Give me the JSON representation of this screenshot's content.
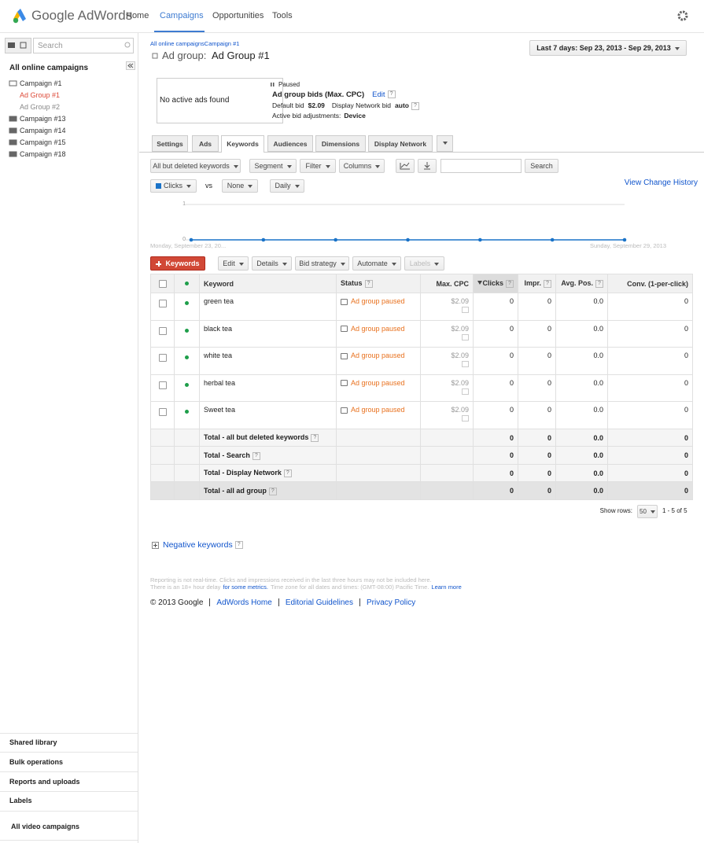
{
  "header": {
    "logo": "Google AdWords",
    "nav": [
      "Home",
      "Campaigns",
      "Opportunities",
      "Tools"
    ]
  },
  "help": "?",
  "sidebar": {
    "search": "Search",
    "title": "All online campaigns",
    "tree": [
      {
        "label": "Campaign #1",
        "children": [
          "Ad Group #1",
          "Ad Group #2"
        ]
      },
      {
        "label": "Campaign #13"
      },
      {
        "label": "Campaign #14"
      },
      {
        "label": "Campaign #15"
      },
      {
        "label": "Campaign #18"
      }
    ],
    "bottom": [
      "Shared library",
      "Bulk operations",
      "Reports and uploads",
      "Labels",
      "All video campaigns"
    ]
  },
  "breadcrumb": [
    "All online campaigns",
    "Campaign #1"
  ],
  "page_title": {
    "prefix": "Ad group:",
    "name": "Ad Group #1"
  },
  "date_range": "Last 7 days: Sep 23, 2013 - Sep 29, 2013",
  "summary": {
    "no_ads": "No active ads found",
    "status": "Paused",
    "bids_label": "Ad group bids (Max. CPC)",
    "edit": "Edit",
    "default_bid_label": "Default bid",
    "default_bid": "$2.09",
    "display_bid_label": "Display Network bid",
    "display_bid": "auto",
    "adjust_label": "Active bid adjustments:",
    "adjust": "Device"
  },
  "tabs": [
    "Settings",
    "Ads",
    "Keywords",
    "Audiences",
    "Dimensions",
    "Display Network"
  ],
  "toolbar": {
    "buttons": [
      "All but deleted keywords",
      "Segment",
      "Filter",
      "Columns"
    ],
    "search": "Search"
  },
  "graph_controls": {
    "metric": "Clicks",
    "vs": "vs",
    "compare": "None",
    "period": "Daily",
    "history": "View Change History"
  },
  "graph": {
    "yticks": [
      0,
      1
    ],
    "values": [
      0,
      0,
      0,
      0,
      0,
      0,
      0
    ],
    "x_start": "Monday, September 23, 20...",
    "x_end": "Sunday, September 29, 2013"
  },
  "actions": [
    "Keywords",
    "Edit",
    "Details",
    "Bid strategy",
    "Automate",
    "Labels"
  ],
  "table": {
    "columns": [
      "Keyword",
      "Status",
      "Max. CPC",
      "Clicks",
      "Impr.",
      "Avg. Pos.",
      "Conv. (1-per-click)"
    ],
    "rows": [
      [
        "green tea",
        "Ad group paused",
        "$2.09",
        0,
        0,
        "0.0",
        0
      ],
      [
        "black tea",
        "Ad group paused",
        "$2.09",
        0,
        0,
        "0.0",
        0
      ],
      [
        "white tea",
        "Ad group paused",
        "$2.09",
        0,
        0,
        "0.0",
        0
      ],
      [
        "herbal tea",
        "Ad group paused",
        "$2.09",
        0,
        0,
        "0.0",
        0
      ],
      [
        "Sweet tea",
        "Ad group paused",
        "$2.09",
        0,
        0,
        "0.0",
        0
      ]
    ],
    "totals": [
      [
        "Total - all but deleted keywords",
        0,
        0,
        "0.0",
        0
      ],
      [
        "Total - Search",
        0,
        0,
        "0.0",
        0
      ],
      [
        "Total - Display Network",
        0,
        0,
        "0.0",
        0
      ],
      [
        "Total - all ad group",
        0,
        0,
        "0.0",
        0
      ]
    ]
  },
  "pagination": {
    "label": "Show rows:",
    "rows": 50,
    "range": "1 - 5 of 5"
  },
  "negative_keywords": "Negative keywords",
  "footer": {
    "note_1": "Reporting is not real-time. Clicks and impressions received in the last three hours may not be included here.",
    "note_2a": "There is an 18+ hour delay",
    "note_2b": "for some metrics.",
    "note_2c": "Time zone for all dates and times: (GMT-08:00) Pacific Time.",
    "note_2d": "Learn more",
    "links": [
      "© 2013 Google",
      "AdWords Home",
      "Editorial Guidelines",
      "Privacy Policy"
    ]
  }
}
